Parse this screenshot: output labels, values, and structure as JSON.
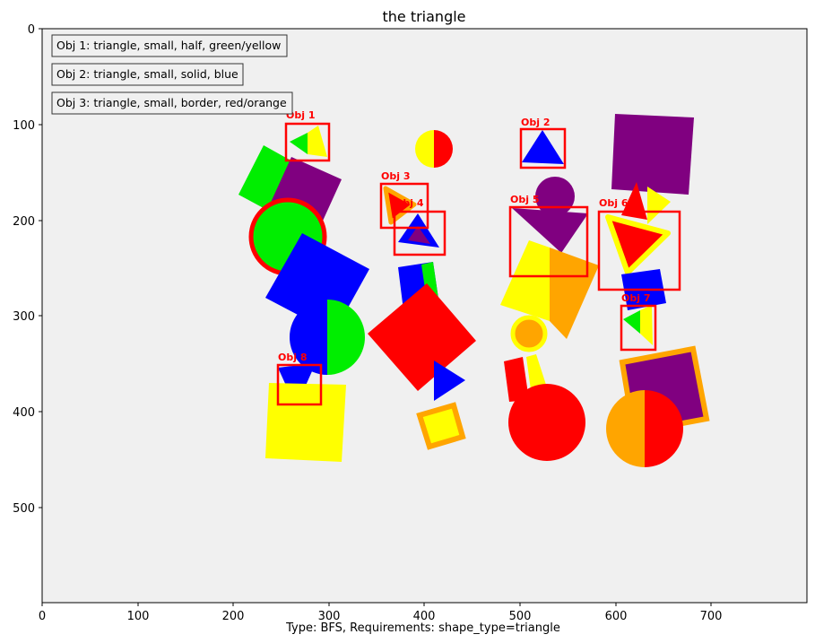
{
  "title": "the triangle",
  "caption": "Type: BFS, Requirements: shape_type=triangle",
  "x_ticks": [
    "0",
    "100",
    "200",
    "300",
    "400",
    "500",
    "600",
    "700"
  ],
  "y_ticks": [
    "0",
    "100",
    "200",
    "300",
    "400",
    "500"
  ],
  "legend": [
    "Obj 1: triangle, small, half, green/yellow",
    "Obj 2: triangle, small, solid, blue",
    "Obj 3: triangle, small, border, red/orange"
  ],
  "objects": [
    "Obj 1",
    "Obj 2",
    "Obj 3",
    "Obj 4",
    "Obj 5",
    "Obj 6",
    "Obj 7",
    "Obj 8"
  ],
  "colors": {
    "background": "#f0f0f0",
    "red": "#ff0000",
    "green": "#00ee00",
    "blue": "#0000ff",
    "yellow": "#ffff00",
    "orange": "#ffa500",
    "purple": "#800080",
    "box": "#ff0000"
  }
}
